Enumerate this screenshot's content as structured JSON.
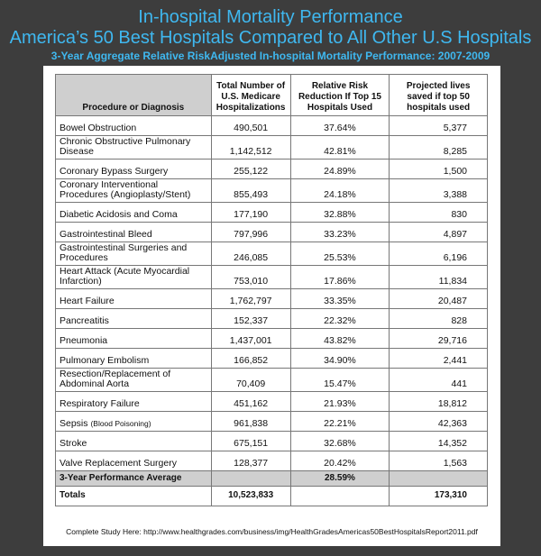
{
  "header": {
    "title_line1": "In-hospital Mortality Performance",
    "title_line2": "America’s 50 Best Hospitals Compared to All Other U.S Hospitals",
    "subtitle": "3-Year Aggregate Relative RiskAdjusted In-hospital Mortality Performance: 2007-2009"
  },
  "table": {
    "columns": [
      "Procedure or Diagnosis",
      "Total Number of U.S. Medicare Hospitalizations",
      "Relative Risk Reduction If Top 15 Hospitals Used",
      "Projected lives saved if top 50 hospitals used"
    ],
    "rows": [
      {
        "proc": "Bowel Obstruction",
        "total": "490,501",
        "rrr": "37.64%",
        "lives": "5,377"
      },
      {
        "proc": "Chronic Obstructive Pulmonary Disease",
        "total": "1,142,512",
        "rrr": "42.81%",
        "lives": "8,285"
      },
      {
        "proc": "Coronary Bypass Surgery",
        "total": "255,122",
        "rrr": "24.89%",
        "lives": "1,500"
      },
      {
        "proc": "Coronary Interventional Procedures (Angioplasty/Stent)",
        "total": "855,493",
        "rrr": "24.18%",
        "lives": "3,388"
      },
      {
        "proc": "Diabetic Acidosis and Coma",
        "total": "177,190",
        "rrr": "32.88%",
        "lives": "830"
      },
      {
        "proc": "Gastrointestinal Bleed",
        "total": "797,996",
        "rrr": "33.23%",
        "lives": "4,897"
      },
      {
        "proc": "Gastrointestinal Surgeries and Procedures",
        "total": "246,085",
        "rrr": "25.53%",
        "lives": "6,196"
      },
      {
        "proc": "Heart Attack (Acute Myocardial Infarction)",
        "total": "753,010",
        "rrr": "17.86%",
        "lives": "11,834"
      },
      {
        "proc": "Heart Failure",
        "total": "1,762,797",
        "rrr": "33.35%",
        "lives": "20,487"
      },
      {
        "proc": "Pancreatitis",
        "total": "152,337",
        "rrr": "22.32%",
        "lives": "828"
      },
      {
        "proc": "Pneumonia",
        "total": "1,437,001",
        "rrr": "43.82%",
        "lives": "29,716"
      },
      {
        "proc": "Pulmonary Embolism",
        "total": "166,852",
        "rrr": "34.90%",
        "lives": "2,441"
      },
      {
        "proc": "Resection/Replacement of Abdominal Aorta",
        "total": "70,409",
        "rrr": "15.47%",
        "lives": "441"
      },
      {
        "proc": "Respiratory Failure",
        "total": "451,162",
        "rrr": "21.93%",
        "lives": "18,812"
      },
      {
        "proc": "Sepsis",
        "proc_note": "(Blood Poisoning)",
        "total": "961,838",
        "rrr": "22.21%",
        "lives": "42,363"
      },
      {
        "proc": "Stroke",
        "total": "675,151",
        "rrr": "32.68%",
        "lives": "14,352"
      },
      {
        "proc": "Valve Replacement Surgery",
        "total": "128,377",
        "rrr": "20.42%",
        "lives": "1,563"
      }
    ],
    "average": {
      "label": "3-Year Performance Average",
      "rrr": "28.59%"
    },
    "totals": {
      "label": "Totals",
      "total": "10,523,833",
      "lives": "173,310"
    }
  },
  "footer": {
    "text": "Complete Study Here: http://www.healthgrades.com/business/img/HealthGradesAmericas50BestHospitalsReport2011.pdf"
  }
}
